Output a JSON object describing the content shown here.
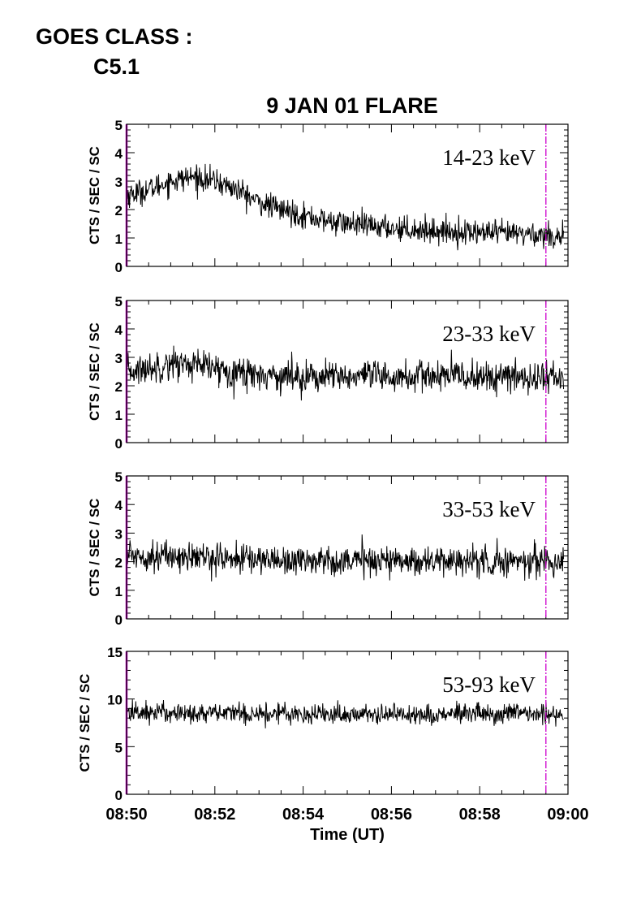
{
  "header": {
    "goes_label": "GOES CLASS :",
    "goes_class": "C5.1"
  },
  "figure": {
    "title": "9 JAN 01 FLARE",
    "xlabel": "Time (UT)",
    "marker_color": "#cc00cc",
    "line_color": "#000000"
  },
  "chart_data": [
    {
      "type": "line",
      "title": "9 JAN 01 FLARE",
      "annotation": "14-23 keV",
      "ylabel": "CTS / SEC / SC",
      "xlim": [
        "08:50",
        "09:00"
      ],
      "ylim": [
        0,
        5
      ],
      "yticks": [
        0,
        1,
        2,
        3,
        4,
        5
      ],
      "xticks": [
        "08:50",
        "08:52",
        "08:54",
        "08:56",
        "08:58",
        "09:00"
      ],
      "vertical_markers": [
        "08:50",
        "08:59.5"
      ],
      "x": [
        "08:50.0",
        "08:50.5",
        "08:51.0",
        "08:51.5",
        "08:52.0",
        "08:52.5",
        "08:53.0",
        "08:53.5",
        "08:54.0",
        "08:54.5",
        "08:55.0",
        "08:55.5",
        "08:56.0",
        "08:56.5",
        "08:57.0",
        "08:57.5",
        "08:58.0",
        "08:58.5",
        "08:59.0",
        "08:59.5",
        "08:59.9"
      ],
      "values": [
        2.5,
        2.7,
        3.0,
        3.15,
        3.0,
        2.7,
        2.25,
        2.0,
        1.8,
        1.6,
        1.5,
        1.42,
        1.35,
        1.3,
        1.25,
        1.2,
        1.2,
        1.15,
        1.15,
        1.1,
        1.05
      ],
      "noise": 0.22
    },
    {
      "type": "line",
      "annotation": "23-33 keV",
      "ylabel": "CTS / SEC / SC",
      "xlim": [
        "08:50",
        "09:00"
      ],
      "ylim": [
        0,
        5
      ],
      "yticks": [
        0,
        1,
        2,
        3,
        4,
        5
      ],
      "xticks": [
        "08:50",
        "08:52",
        "08:54",
        "08:56",
        "08:58",
        "09:00"
      ],
      "vertical_markers": [
        "08:50",
        "08:59.5"
      ],
      "x": [
        "08:50.0",
        "08:50.5",
        "08:51.0",
        "08:51.5",
        "08:52.0",
        "08:52.5",
        "08:53.0",
        "08:53.5",
        "08:54.0",
        "08:54.5",
        "08:55.0",
        "08:55.5",
        "08:56.0",
        "08:56.5",
        "08:57.0",
        "08:57.5",
        "08:58.0",
        "08:58.5",
        "08:59.0",
        "08:59.5",
        "08:59.9"
      ],
      "values": [
        2.5,
        2.6,
        2.8,
        2.75,
        2.6,
        2.5,
        2.4,
        2.35,
        2.35,
        2.3,
        2.3,
        2.3,
        2.3,
        2.3,
        2.35,
        2.35,
        2.3,
        2.3,
        2.3,
        2.3,
        2.3
      ],
      "noise": 0.28
    },
    {
      "type": "line",
      "annotation": "33-53 keV",
      "ylabel": "CTS / SEC / SC",
      "xlim": [
        "08:50",
        "09:00"
      ],
      "ylim": [
        0,
        5
      ],
      "yticks": [
        0,
        1,
        2,
        3,
        4,
        5
      ],
      "xticks": [
        "08:50",
        "08:52",
        "08:54",
        "08:56",
        "08:58",
        "09:00"
      ],
      "vertical_markers": [
        "08:50",
        "08:59.5"
      ],
      "x": [
        "08:50.0",
        "08:50.5",
        "08:51.0",
        "08:51.5",
        "08:52.0",
        "08:52.5",
        "08:53.0",
        "08:53.5",
        "08:54.0",
        "08:54.5",
        "08:55.0",
        "08:55.5",
        "08:56.0",
        "08:56.5",
        "08:57.0",
        "08:57.5",
        "08:58.0",
        "08:58.5",
        "08:59.0",
        "08:59.5",
        "08:59.9"
      ],
      "values": [
        2.25,
        2.2,
        2.2,
        2.15,
        2.15,
        2.1,
        2.1,
        2.05,
        2.05,
        2.05,
        2.05,
        2.05,
        2.05,
        2.05,
        2.0,
        2.05,
        2.0,
        2.0,
        2.05,
        2.0,
        2.0
      ],
      "noise": 0.26
    },
    {
      "type": "line",
      "annotation": "53-93 keV",
      "ylabel": "CTS / SEC / SC",
      "xlim": [
        "08:50",
        "09:00"
      ],
      "ylim": [
        0,
        15
      ],
      "yticks": [
        0,
        5,
        10,
        15
      ],
      "xticks": [
        "08:50",
        "08:52",
        "08:54",
        "08:56",
        "08:58",
        "09:00"
      ],
      "vertical_markers": [
        "08:50",
        "08:59.5"
      ],
      "x": [
        "08:50.0",
        "08:50.5",
        "08:51.0",
        "08:51.5",
        "08:52.0",
        "08:52.5",
        "08:53.0",
        "08:53.5",
        "08:54.0",
        "08:54.5",
        "08:55.0",
        "08:55.5",
        "08:56.0",
        "08:56.5",
        "08:57.0",
        "08:57.5",
        "08:58.0",
        "08:58.5",
        "08:59.0",
        "08:59.5",
        "08:59.9"
      ],
      "values": [
        8.6,
        8.6,
        8.6,
        8.5,
        8.5,
        8.5,
        8.5,
        8.5,
        8.5,
        8.4,
        8.4,
        8.4,
        8.4,
        8.4,
        8.4,
        8.4,
        8.4,
        8.4,
        8.4,
        8.4,
        8.4
      ],
      "noise": 0.55
    }
  ]
}
